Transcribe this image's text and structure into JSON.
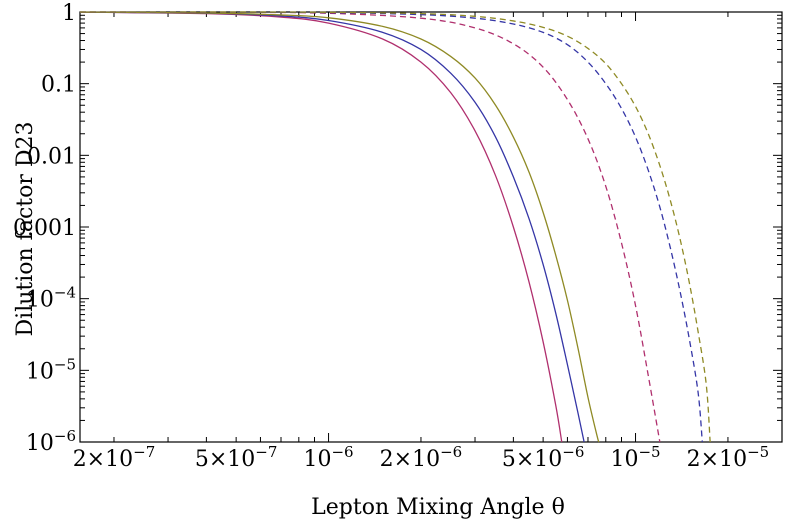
{
  "chart_data": {
    "type": "line",
    "title": "",
    "xlabel": "Lepton Mixing Angle θ",
    "ylabel": "Dilution factor D23",
    "xscale": "log",
    "yscale": "log",
    "xlim": [
      1.55e-07,
      3e-05
    ],
    "ylim": [
      1e-06,
      1
    ],
    "grid": false,
    "legend": "none",
    "x_ticks": [
      {
        "value": 2e-07,
        "mant": "2×10",
        "exp": "−7"
      },
      {
        "value": 5e-07,
        "mant": "5×10",
        "exp": "−7"
      },
      {
        "value": 1e-06,
        "mant": "10",
        "exp": "−6"
      },
      {
        "value": 2e-06,
        "mant": "2×10",
        "exp": "−6"
      },
      {
        "value": 5e-06,
        "mant": "5×10",
        "exp": "−6"
      },
      {
        "value": 1e-05,
        "mant": "10",
        "exp": "−5"
      },
      {
        "value": 2e-05,
        "mant": "2×10",
        "exp": "−5"
      }
    ],
    "y_ticks": [
      {
        "value": 1,
        "mant": "1",
        "exp": ""
      },
      {
        "value": 0.1,
        "mant": "0.1",
        "exp": ""
      },
      {
        "value": 0.01,
        "mant": "0.01",
        "exp": ""
      },
      {
        "value": 0.001,
        "mant": "0.001",
        "exp": ""
      },
      {
        "value": 0.0001,
        "mant": "10",
        "exp": "−4"
      },
      {
        "value": 1e-05,
        "mant": "10",
        "exp": "−5"
      },
      {
        "value": 1e-06,
        "mant": "10",
        "exp": "−6"
      }
    ],
    "series": [
      {
        "color": "#b0306e",
        "dash": "solid",
        "x": [
          1.55e-07,
          4e-07,
          7e-07,
          1e-06,
          1.5e-06,
          2e-06,
          2.5e-06,
          3e-06,
          3.5e-06,
          4e-06,
          4.5e-06,
          5e-06,
          5.5e-06,
          5.75e-06
        ],
        "y": [
          0.995,
          0.95,
          0.85,
          0.7,
          0.42,
          0.2,
          0.075,
          0.022,
          0.0052,
          0.001,
          0.00017,
          2.5e-05,
          3.2e-06,
          1e-06
        ]
      },
      {
        "color": "#3536a6",
        "dash": "solid",
        "x": [
          1.55e-07,
          4e-07,
          7e-07,
          1e-06,
          1.5e-06,
          2e-06,
          2.5e-06,
          3e-06,
          3.5e-06,
          4e-06,
          4.5e-06,
          5e-06,
          5.5e-06,
          6e-06,
          6.5e-06,
          6.8e-06
        ],
        "y": [
          0.995,
          0.96,
          0.88,
          0.76,
          0.52,
          0.3,
          0.14,
          0.055,
          0.018,
          0.005,
          0.0013,
          0.0003,
          6.2e-05,
          1.2e-05,
          2.5e-06,
          1e-06
        ]
      },
      {
        "color": "#8f8a25",
        "dash": "solid",
        "x": [
          1.55e-07,
          4e-07,
          7e-07,
          1e-06,
          1.5e-06,
          2e-06,
          2.5e-06,
          3e-06,
          3.5e-06,
          4e-06,
          4.5e-06,
          5e-06,
          5.5e-06,
          6e-06,
          6.5e-06,
          7e-06,
          7.5e-06,
          7.6e-06
        ],
        "y": [
          0.996,
          0.97,
          0.91,
          0.83,
          0.63,
          0.42,
          0.24,
          0.12,
          0.05,
          0.018,
          0.0058,
          0.0016,
          0.0004,
          9.5e-05,
          2e-05,
          4.2e-06,
          1.2e-06,
          1e-06
        ]
      },
      {
        "color": "#b0306e",
        "dash": "dashed",
        "x": [
          1.55e-07,
          5e-07,
          1e-06,
          2e-06,
          3e-06,
          4e-06,
          5e-06,
          6e-06,
          7e-06,
          8e-06,
          9e-06,
          1e-05,
          1.1e-05,
          1.2e-05
        ],
        "y": [
          0.999,
          0.99,
          0.96,
          0.82,
          0.6,
          0.36,
          0.17,
          0.06,
          0.017,
          0.0037,
          0.0006,
          8e-05,
          8.5e-06,
          1e-06
        ]
      },
      {
        "color": "#3536a6",
        "dash": "dashed",
        "x": [
          1.55e-07,
          5e-07,
          1e-06,
          2e-06,
          3e-06,
          4e-06,
          5e-06,
          6e-06,
          7e-06,
          8e-06,
          9e-06,
          1e-05,
          1.1e-05,
          1.2e-05,
          1.3e-05,
          1.4e-05,
          1.5e-05,
          1.6e-05,
          1.65e-05
        ],
        "y": [
          0.999,
          0.995,
          0.98,
          0.92,
          0.82,
          0.68,
          0.52,
          0.35,
          0.2,
          0.1,
          0.045,
          0.018,
          0.0062,
          0.0019,
          0.0005,
          0.00012,
          2.6e-05,
          4.8e-06,
          1e-06
        ]
      },
      {
        "color": "#8f8a25",
        "dash": "dashed",
        "x": [
          1.55e-07,
          5e-07,
          1e-06,
          2e-06,
          3e-06,
          4e-06,
          5e-06,
          6e-06,
          7e-06,
          8e-06,
          9e-06,
          1e-05,
          1.1e-05,
          1.2e-05,
          1.3e-05,
          1.4e-05,
          1.5e-05,
          1.6e-05,
          1.7e-05,
          1.75e-05
        ],
        "y": [
          0.9995,
          0.998,
          0.99,
          0.95,
          0.87,
          0.75,
          0.61,
          0.46,
          0.31,
          0.19,
          0.1,
          0.048,
          0.02,
          0.0072,
          0.0023,
          0.00065,
          0.00016,
          3.4e-05,
          6.3e-06,
          1e-06
        ]
      }
    ]
  }
}
